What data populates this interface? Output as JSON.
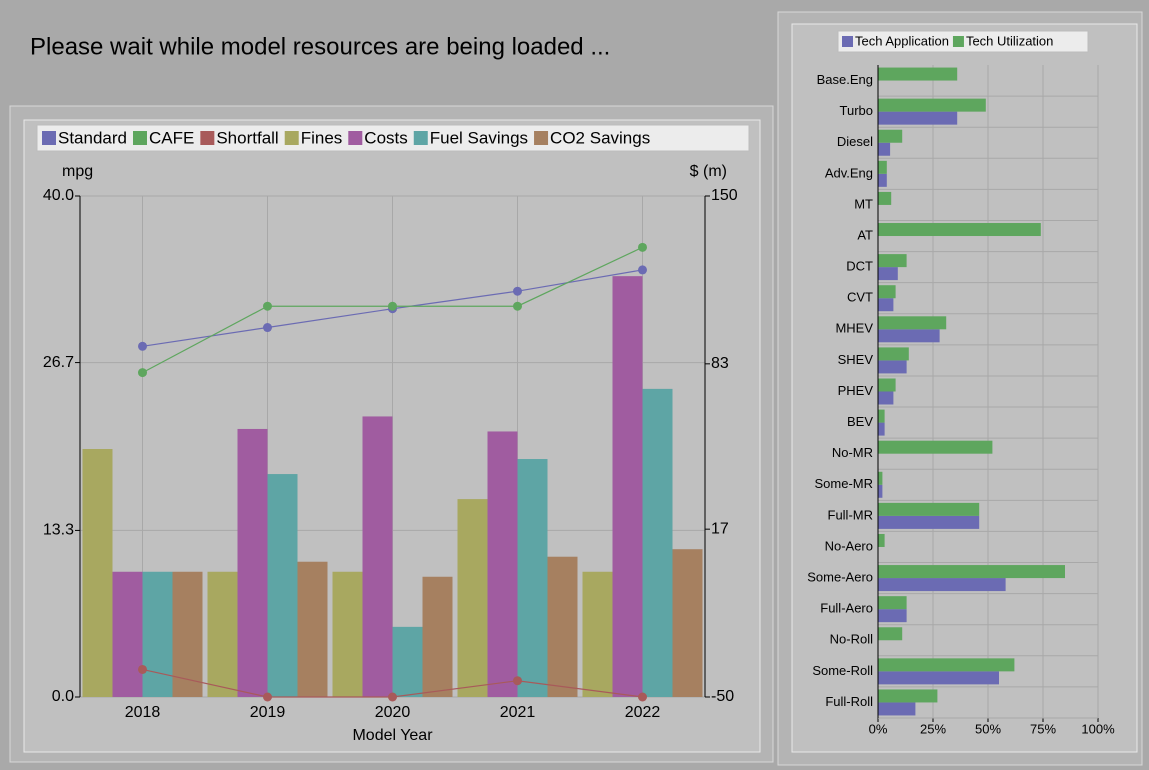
{
  "message": "Please wait while model resources are being loaded ...",
  "chart_data": [
    {
      "type": "combo",
      "xlabel": "Model Year",
      "ylabel": "mpg",
      "y2label": "$ (m)",
      "categories": [
        "2018",
        "2019",
        "2020",
        "2021",
        "2022"
      ],
      "ylim": [
        0,
        40
      ],
      "yticks": [
        {
          "value": 0,
          "label": "0.0"
        },
        13.3,
        26.7,
        {
          "value": 40,
          "label": "40.0"
        }
      ],
      "y2lim": [
        -50,
        150
      ],
      "y2ticks": [
        -50,
        17,
        83,
        150
      ],
      "grid": true,
      "legend": "top",
      "series": [
        {
          "name": "Standard",
          "kind": "line",
          "color": "#6b6bb3",
          "values": [
            28.0,
            29.5,
            31.0,
            32.4,
            34.1
          ]
        },
        {
          "name": "CAFE",
          "kind": "line",
          "color": "#5ea65e",
          "values": [
            25.9,
            31.2,
            31.2,
            31.2,
            35.9
          ]
        },
        {
          "name": "Shortfall",
          "kind": "line",
          "color": "#a85a5a",
          "values": [
            2.2,
            0,
            0,
            1.3,
            0
          ]
        },
        {
          "name": "Fines",
          "kind": "bar",
          "axis": "y2",
          "color": "#a8a860",
          "values": [
            49,
            0,
            0,
            29,
            0
          ]
        },
        {
          "name": "Costs",
          "kind": "bar",
          "axis": "y2",
          "color": "#a05ca0",
          "values": [
            0,
            57,
            62,
            56,
            118
          ]
        },
        {
          "name": "Fuel Savings",
          "kind": "bar",
          "axis": "y2",
          "color": "#5ea5a5",
          "values": [
            0,
            39,
            -22,
            45,
            73
          ]
        },
        {
          "name": "CO2 Savings",
          "kind": "bar",
          "axis": "y2",
          "color": "#a68060",
          "values": [
            0,
            4,
            -2,
            6,
            9
          ]
        }
      ]
    },
    {
      "type": "barh",
      "grid": true,
      "legend": "top",
      "categories": [
        "Base.Eng",
        "Turbo",
        "Diesel",
        "Adv.Eng",
        "MT",
        "AT",
        "DCT",
        "CVT",
        "MHEV",
        "SHEV",
        "PHEV",
        "BEV",
        "No-MR",
        "Some-MR",
        "Full-MR",
        "No-Aero",
        "Some-Aero",
        "Full-Aero",
        "No-Roll",
        "Some-Roll",
        "Full-Roll"
      ],
      "xlim": [
        0,
        100
      ],
      "xticks": [
        {
          "value": 0,
          "label": "0%"
        },
        {
          "value": 25,
          "label": "25%"
        },
        {
          "value": 50,
          "label": "50%"
        },
        {
          "value": 75,
          "label": "75%"
        },
        {
          "value": 100,
          "label": "100%"
        }
      ],
      "series": [
        {
          "name": "Tech Application",
          "color": "#6b6bb3",
          "values": [
            0,
            36,
            5.5,
            4,
            0,
            0,
            9,
            7,
            28,
            13,
            7,
            3,
            0,
            2,
            46,
            0,
            58,
            13,
            0,
            55,
            17
          ]
        },
        {
          "name": "Tech Utilization",
          "color": "#5ea65e",
          "values": [
            36,
            49,
            11,
            4,
            6,
            74,
            13,
            8,
            31,
            14,
            8,
            3,
            52,
            2,
            46,
            3,
            85,
            13,
            11,
            62,
            27
          ]
        }
      ]
    }
  ]
}
